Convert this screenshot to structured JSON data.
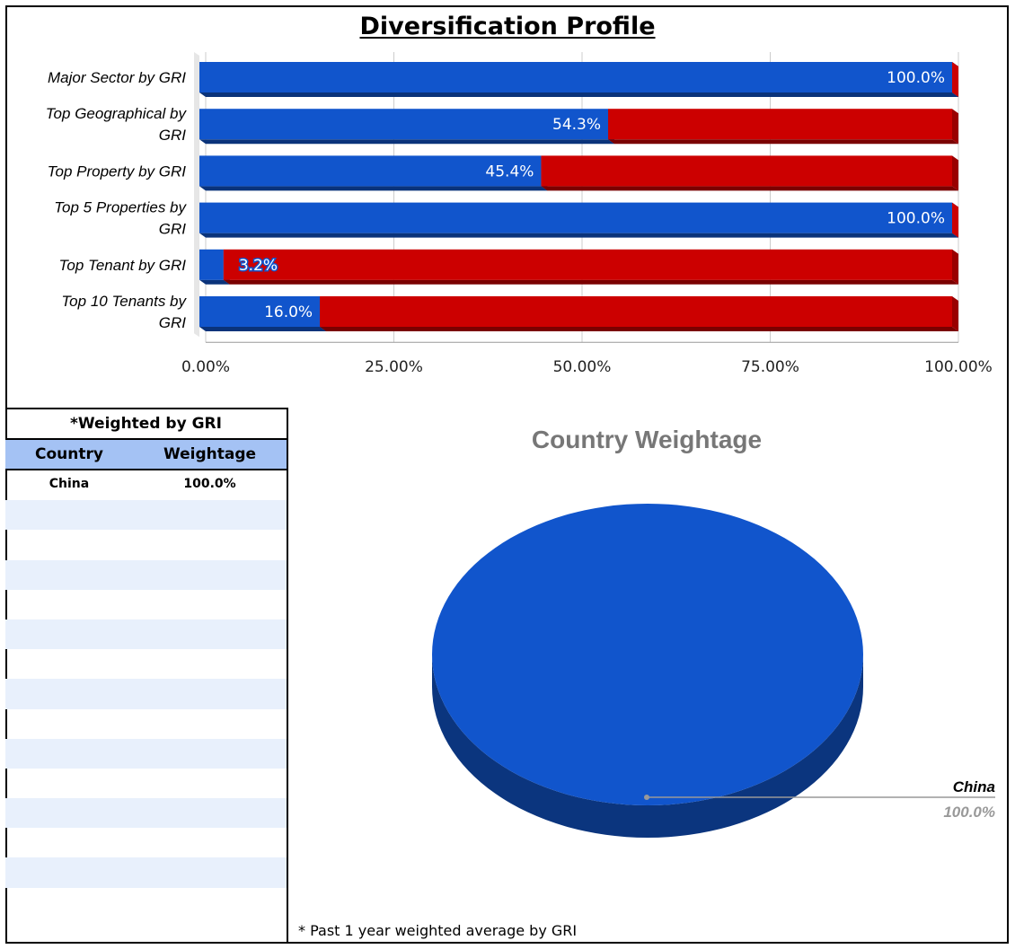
{
  "page_title": "Diversification Profile",
  "colors": {
    "blue": "#1155cc",
    "red": "#cc0000",
    "table_header": "#a4c2f4",
    "table_alt": "#e8f0fc"
  },
  "chart_data": [
    {
      "type": "bar",
      "orientation": "horizontal",
      "stacked": true,
      "title": "",
      "categories": [
        "Major Sector by GRI",
        "Top Geographical by GRI",
        "Top Property by GRI",
        "Top 5 Properties by GRI",
        "Top Tenant by GRI",
        "Top 10 Tenants by GRI"
      ],
      "series": [
        {
          "color": "#1155cc",
          "values": [
            100.0,
            54.3,
            45.4,
            100.0,
            3.2,
            16.0
          ],
          "data_labels": [
            "100.0%",
            "54.3%",
            "45.4%",
            "100.0%",
            "3.2%",
            "16.0%"
          ]
        },
        {
          "color": "#cc0000",
          "values": [
            0.0,
            45.7,
            54.6,
            0.0,
            96.8,
            84.0
          ]
        }
      ],
      "xlim": [
        0,
        100
      ],
      "x_ticks": [
        "0.00%",
        "25.00%",
        "50.00%",
        "75.00%",
        "100.00%"
      ],
      "grid": true
    },
    {
      "type": "pie",
      "title": "Country Weightage",
      "categories": [
        "China"
      ],
      "values": [
        100.0
      ],
      "data_labels": [
        "100.0%"
      ],
      "colors": [
        "#1155cc"
      ]
    }
  ],
  "table": {
    "caption": "*Weighted by GRI",
    "headers": [
      "Country",
      "Weightage"
    ],
    "rows": [
      {
        "country": "China",
        "weightage": "100.0%"
      }
    ]
  },
  "footnote": "* Past 1 year weighted average by GRI"
}
